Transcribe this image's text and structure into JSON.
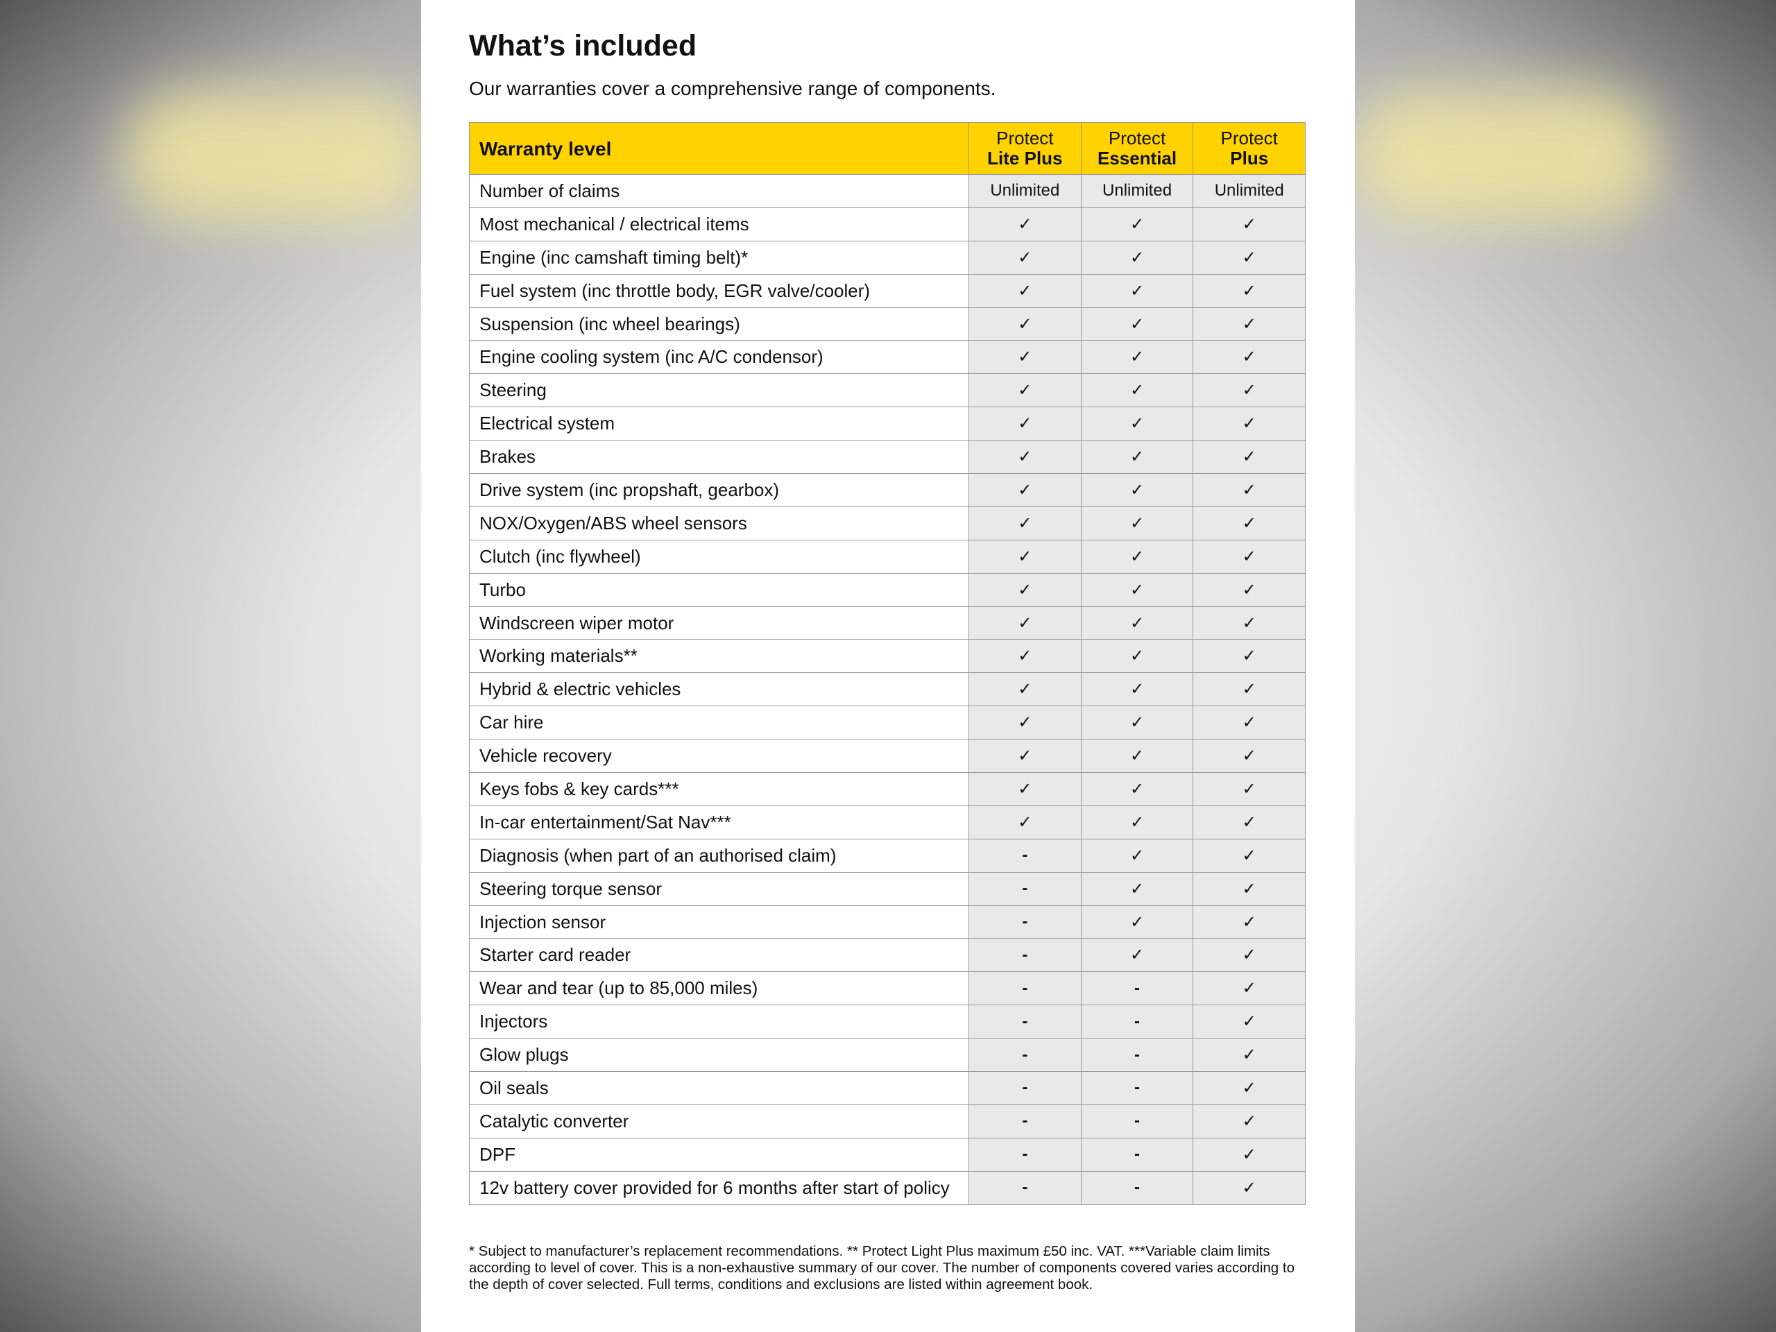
{
  "header": {
    "title": "What’s included",
    "subtitle": "Our warranties cover a comprehensive range of components."
  },
  "table": {
    "header": {
      "label": "Warranty level",
      "columns": [
        {
          "line1": "Protect",
          "line2": "Lite Plus"
        },
        {
          "line1": "Protect",
          "line2": "Essential"
        },
        {
          "line1": "Protect",
          "line2": "Plus"
        }
      ]
    },
    "rows": [
      [
        "Number of claims",
        "Unlimited",
        "Unlimited",
        "Unlimited"
      ],
      [
        "Most mechanical / electrical items",
        "✓",
        "✓",
        "✓"
      ],
      [
        "Engine (inc camshaft timing belt)*",
        "✓",
        "✓",
        "✓"
      ],
      [
        "Fuel system (inc throttle body, EGR valve/cooler)",
        "✓",
        "✓",
        "✓"
      ],
      [
        "Suspension (inc wheel bearings)",
        "✓",
        "✓",
        "✓"
      ],
      [
        "Engine cooling system (inc A/C condensor)",
        "✓",
        "✓",
        "✓"
      ],
      [
        "Steering",
        "✓",
        "✓",
        "✓"
      ],
      [
        "Electrical system",
        "✓",
        "✓",
        "✓"
      ],
      [
        "Brakes",
        "✓",
        "✓",
        "✓"
      ],
      [
        "Drive system (inc propshaft, gearbox)",
        "✓",
        "✓",
        "✓"
      ],
      [
        "NOX/Oxygen/ABS wheel sensors",
        "✓",
        "✓",
        "✓"
      ],
      [
        "Clutch (inc flywheel)",
        "✓",
        "✓",
        "✓"
      ],
      [
        "Turbo",
        "✓",
        "✓",
        "✓"
      ],
      [
        "Windscreen wiper motor",
        "✓",
        "✓",
        "✓"
      ],
      [
        "Working materials**",
        "✓",
        "✓",
        "✓"
      ],
      [
        "Hybrid & electric vehicles",
        "✓",
        "✓",
        "✓"
      ],
      [
        "Car hire",
        "✓",
        "✓",
        "✓"
      ],
      [
        "Vehicle recovery",
        "✓",
        "✓",
        "✓"
      ],
      [
        "Keys fobs & key cards***",
        "✓",
        "✓",
        "✓"
      ],
      [
        "In-car entertainment/Sat Nav***",
        "✓",
        "✓",
        "✓"
      ],
      [
        "Diagnosis (when part of an authorised claim)",
        "-",
        "✓",
        "✓"
      ],
      [
        "Steering torque sensor",
        "-",
        "✓",
        "✓"
      ],
      [
        "Injection sensor",
        "-",
        "✓",
        "✓"
      ],
      [
        "Starter card reader",
        "-",
        "✓",
        "✓"
      ],
      [
        "Wear and tear (up to 85,000 miles)",
        "-",
        "-",
        "✓"
      ],
      [
        "Injectors",
        "-",
        "-",
        "✓"
      ],
      [
        "Glow plugs",
        "-",
        "-",
        "✓"
      ],
      [
        "Oil seals",
        "-",
        "-",
        "✓"
      ],
      [
        "Catalytic converter",
        "-",
        "-",
        "✓"
      ],
      [
        "DPF",
        "-",
        "-",
        "✓"
      ],
      [
        "12v battery cover provided for 6 months after start of policy",
        "-",
        "-",
        "✓"
      ]
    ]
  },
  "footnote": "* Subject to manufacturer’s replacement recommendations. ** Protect Light Plus maximum £50 inc. VAT. ***Variable claim limits according to level of cover. This is a non-exhaustive summary of our cover. The number of components covered varies according to the depth of cover selected. Full terms, conditions and exclusions are listed within agreement book."
}
